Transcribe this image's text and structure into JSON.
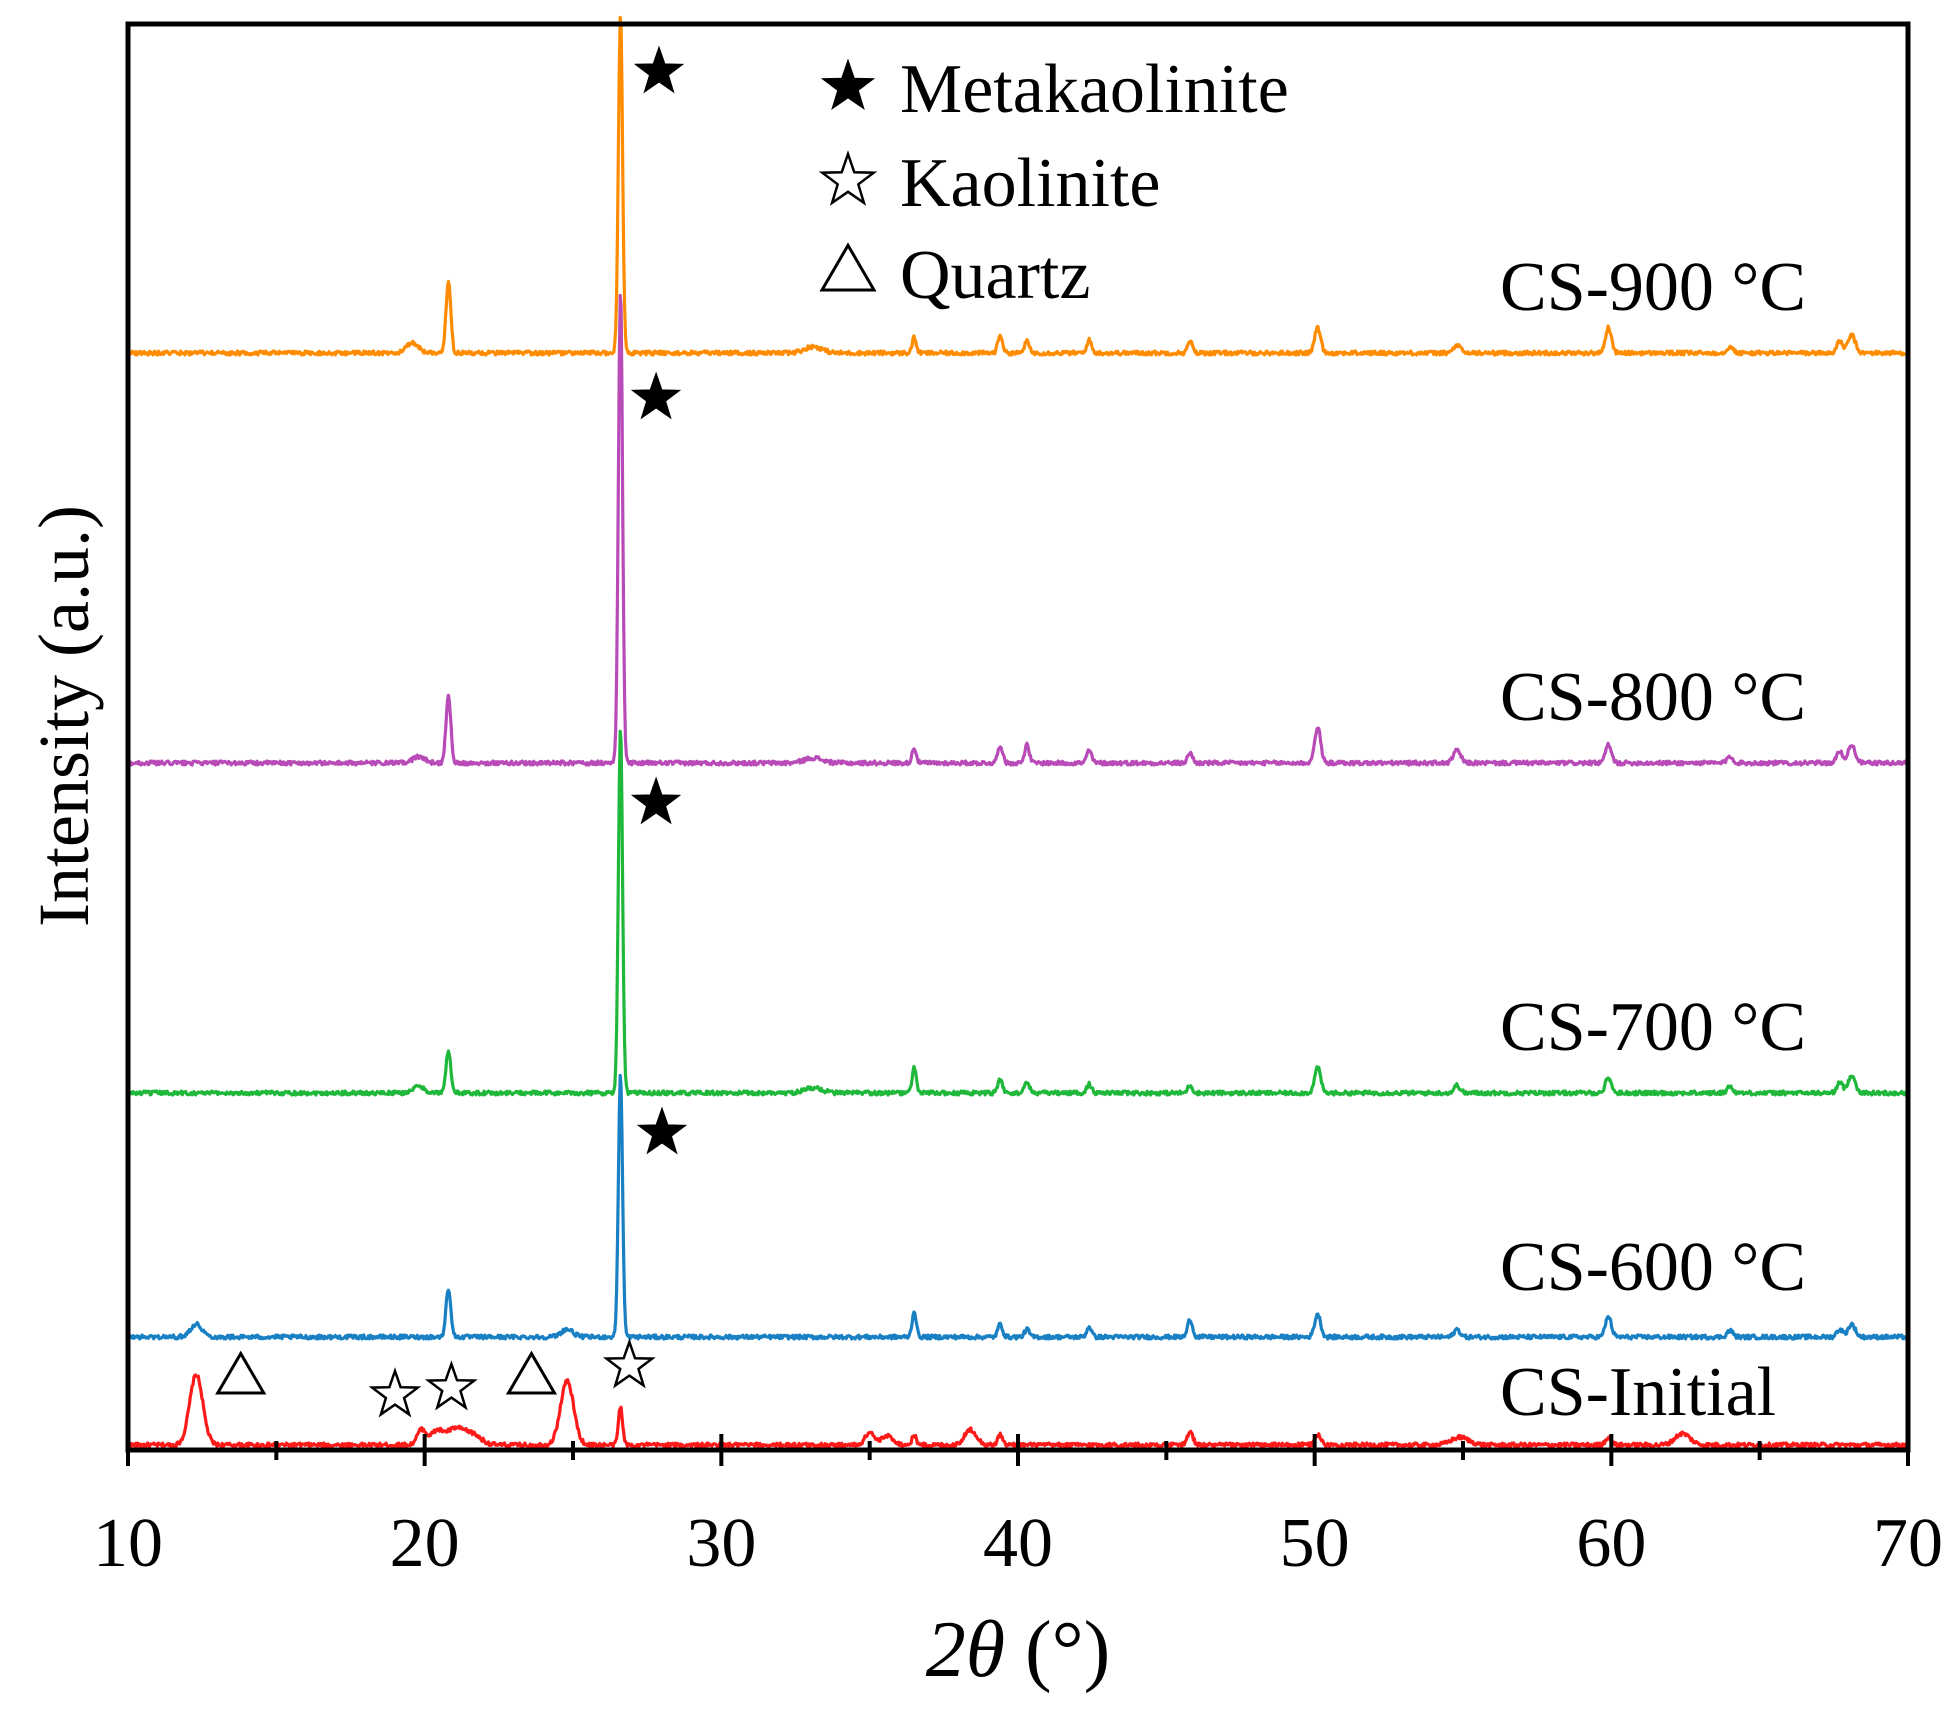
{
  "chart_data": {
    "type": "line",
    "title": "",
    "xlabel_prefix": "2",
    "xlabel_symbol": "θ",
    "xlabel_suffix": " (°)",
    "ylabel": "Intensity (a.u.)",
    "xlim": [
      10,
      70
    ],
    "x_ticks": [
      10,
      20,
      30,
      40,
      50,
      60,
      70
    ],
    "x_minor_ticks": [
      15,
      25,
      35,
      45,
      55,
      65
    ],
    "series": [
      {
        "name": "CS-Initial",
        "label": "CS-Initial",
        "color": "#ff1a1a",
        "offset": 0,
        "peaks": [
          {
            "x": 12.3,
            "h": 55,
            "w": 0.22
          },
          {
            "x": 19.9,
            "h": 12,
            "w": 0.15
          },
          {
            "x": 20.4,
            "h": 10,
            "w": 0.2
          },
          {
            "x": 21.0,
            "h": 12,
            "w": 0.3
          },
          {
            "x": 21.6,
            "h": 8,
            "w": 0.3
          },
          {
            "x": 24.8,
            "h": 50,
            "w": 0.22
          },
          {
            "x": 26.6,
            "h": 30,
            "w": 0.07
          },
          {
            "x": 35.0,
            "h": 10,
            "w": 0.15
          },
          {
            "x": 35.6,
            "h": 7,
            "w": 0.2
          },
          {
            "x": 36.5,
            "h": 8,
            "w": 0.07
          },
          {
            "x": 38.4,
            "h": 12,
            "w": 0.2
          },
          {
            "x": 39.4,
            "h": 8,
            "w": 0.08
          },
          {
            "x": 45.8,
            "h": 10,
            "w": 0.1
          },
          {
            "x": 50.1,
            "h": 8,
            "w": 0.1
          },
          {
            "x": 54.9,
            "h": 6,
            "w": 0.3
          },
          {
            "x": 59.9,
            "h": 6,
            "w": 0.1
          },
          {
            "x": 62.4,
            "h": 9,
            "w": 0.25
          }
        ]
      },
      {
        "name": "CS-600 °C",
        "label": "CS-600 °C",
        "color": "#1a80c4",
        "offset": 1,
        "peaks": [
          {
            "x": 12.3,
            "h": 10,
            "w": 0.2
          },
          {
            "x": 20.8,
            "h": 38,
            "w": 0.08
          },
          {
            "x": 24.8,
            "h": 6,
            "w": 0.2
          },
          {
            "x": 26.6,
            "h": 205,
            "w": 0.07
          },
          {
            "x": 36.5,
            "h": 20,
            "w": 0.07
          },
          {
            "x": 39.4,
            "h": 10,
            "w": 0.08
          },
          {
            "x": 40.3,
            "h": 6,
            "w": 0.08
          },
          {
            "x": 42.4,
            "h": 8,
            "w": 0.08
          },
          {
            "x": 45.8,
            "h": 14,
            "w": 0.08
          },
          {
            "x": 50.1,
            "h": 18,
            "w": 0.1
          },
          {
            "x": 54.8,
            "h": 6,
            "w": 0.1
          },
          {
            "x": 59.9,
            "h": 16,
            "w": 0.1
          },
          {
            "x": 64.0,
            "h": 5,
            "w": 0.1
          },
          {
            "x": 67.7,
            "h": 6,
            "w": 0.1
          },
          {
            "x": 68.1,
            "h": 10,
            "w": 0.12
          }
        ]
      },
      {
        "name": "CS-700 °C",
        "label": "CS-700 °C",
        "color": "#1fb83a",
        "offset": 2,
        "peaks": [
          {
            "x": 19.8,
            "h": 5,
            "w": 0.2
          },
          {
            "x": 20.8,
            "h": 33,
            "w": 0.08
          },
          {
            "x": 26.6,
            "h": 285,
            "w": 0.07
          },
          {
            "x": 33.1,
            "h": 4,
            "w": 0.3
          },
          {
            "x": 36.5,
            "h": 20,
            "w": 0.07
          },
          {
            "x": 39.4,
            "h": 10,
            "w": 0.08
          },
          {
            "x": 40.3,
            "h": 9,
            "w": 0.08
          },
          {
            "x": 42.4,
            "h": 7,
            "w": 0.08
          },
          {
            "x": 45.8,
            "h": 6,
            "w": 0.08
          },
          {
            "x": 50.1,
            "h": 20,
            "w": 0.1
          },
          {
            "x": 54.8,
            "h": 6,
            "w": 0.1
          },
          {
            "x": 59.9,
            "h": 12,
            "w": 0.1
          },
          {
            "x": 64.0,
            "h": 5,
            "w": 0.1
          },
          {
            "x": 67.7,
            "h": 8,
            "w": 0.1
          },
          {
            "x": 68.1,
            "h": 14,
            "w": 0.12
          }
        ]
      },
      {
        "name": "CS-800 °C",
        "label": "CS-800 °C",
        "color": "#b94bb8",
        "offset": 3,
        "peaks": [
          {
            "x": 19.8,
            "h": 5,
            "w": 0.2
          },
          {
            "x": 20.8,
            "h": 53,
            "w": 0.08
          },
          {
            "x": 26.6,
            "h": 370,
            "w": 0.07
          },
          {
            "x": 33.1,
            "h": 4,
            "w": 0.3
          },
          {
            "x": 36.5,
            "h": 12,
            "w": 0.07
          },
          {
            "x": 39.4,
            "h": 14,
            "w": 0.08
          },
          {
            "x": 40.3,
            "h": 14,
            "w": 0.08
          },
          {
            "x": 42.4,
            "h": 10,
            "w": 0.08
          },
          {
            "x": 45.8,
            "h": 8,
            "w": 0.08
          },
          {
            "x": 50.1,
            "h": 28,
            "w": 0.1
          },
          {
            "x": 54.8,
            "h": 10,
            "w": 0.12
          },
          {
            "x": 59.9,
            "h": 14,
            "w": 0.1
          },
          {
            "x": 64.0,
            "h": 5,
            "w": 0.1
          },
          {
            "x": 67.7,
            "h": 9,
            "w": 0.1
          },
          {
            "x": 68.1,
            "h": 14,
            "w": 0.12
          }
        ]
      },
      {
        "name": "CS-900 °C",
        "label": "CS-900 °C",
        "color": "#ff8c00",
        "offset": 4,
        "peaks": [
          {
            "x": 19.6,
            "h": 8,
            "w": 0.2
          },
          {
            "x": 20.8,
            "h": 55,
            "w": 0.08
          },
          {
            "x": 26.6,
            "h": 265,
            "w": 0.07
          },
          {
            "x": 33.1,
            "h": 5,
            "w": 0.3
          },
          {
            "x": 36.5,
            "h": 12,
            "w": 0.07
          },
          {
            "x": 39.4,
            "h": 14,
            "w": 0.08
          },
          {
            "x": 40.3,
            "h": 9,
            "w": 0.08
          },
          {
            "x": 42.4,
            "h": 10,
            "w": 0.08
          },
          {
            "x": 45.8,
            "h": 9,
            "w": 0.08
          },
          {
            "x": 50.1,
            "h": 20,
            "w": 0.1
          },
          {
            "x": 54.8,
            "h": 6,
            "w": 0.12
          },
          {
            "x": 59.9,
            "h": 20,
            "w": 0.1
          },
          {
            "x": 64.0,
            "h": 5,
            "w": 0.1
          },
          {
            "x": 67.7,
            "h": 9,
            "w": 0.1
          },
          {
            "x": 68.1,
            "h": 14,
            "w": 0.12
          }
        ]
      }
    ],
    "legend": {
      "placement": "top-center",
      "items": [
        {
          "symbol": "★",
          "label": "Metakaolinite",
          "kind": "filled-star"
        },
        {
          "symbol": "☆",
          "label": "Kaolinite",
          "kind": "open-star"
        },
        {
          "symbol": "△",
          "label": "Quartz",
          "kind": "triangle"
        }
      ]
    },
    "phase_markers": [
      {
        "series": "CS-Initial",
        "x": 13.8,
        "kind": "triangle"
      },
      {
        "series": "CS-Initial",
        "x": 19.0,
        "kind": "open-star"
      },
      {
        "series": "CS-Initial",
        "x": 20.9,
        "kind": "open-star"
      },
      {
        "series": "CS-Initial",
        "x": 23.6,
        "kind": "triangle"
      },
      {
        "series": "CS-Initial",
        "x": 26.9,
        "kind": "open-star"
      },
      {
        "series": "CS-600 °C",
        "x": 28.0,
        "kind": "filled-star"
      },
      {
        "series": "CS-700 °C",
        "x": 27.8,
        "kind": "filled-star"
      },
      {
        "series": "CS-800 °C",
        "x": 27.8,
        "kind": "filled-star"
      },
      {
        "series": "CS-900 °C",
        "x": 27.9,
        "kind": "filled-star"
      }
    ]
  }
}
